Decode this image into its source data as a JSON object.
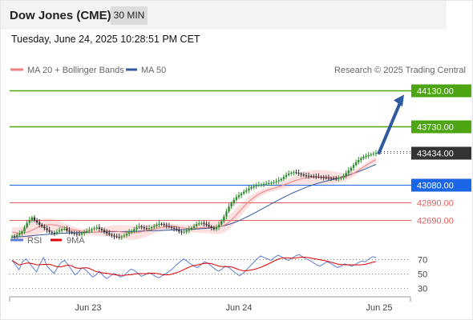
{
  "header": {
    "title": "Dow Jones (CME)",
    "timeframe": "30 MIN",
    "datetime": "Tuesday, June 24, 2025 10:28:51 PM CET"
  },
  "legend": {
    "ma20": "MA 20 + Bollinger Bands",
    "ma50": "MA 50",
    "credit": "Research © 2025 Trading Central",
    "rsi": "RSI",
    "rsi_ma": "9MA"
  },
  "colors": {
    "up_candle": "#2e8b2e",
    "down_candle": "#333333",
    "ma20": "#f08080",
    "ma50": "#2f5aa0",
    "bollinger_fill": "#fde0e0",
    "target": "#4ea514",
    "pivot": "#1a66e6",
    "support": "#e06060",
    "current": "#333333",
    "arrow": "#2f5aa0",
    "rsi_line": "#5b7fd6",
    "rsi_ma": "#e00000"
  },
  "chart_data": [
    {
      "type": "candlestick",
      "x_ticks": [
        "Jun 23",
        "Jun 24",
        "Jun 25"
      ],
      "ylim": [
        42550,
        44250
      ],
      "price_levels": [
        {
          "label": "44130.00",
          "value": 44130,
          "kind": "target"
        },
        {
          "label": "43730.00",
          "value": 43730,
          "kind": "target"
        },
        {
          "label": "43434.00",
          "value": 43434,
          "kind": "current"
        },
        {
          "label": "43080.00",
          "value": 43080,
          "kind": "pivot"
        },
        {
          "label": "42890.00",
          "value": 42890,
          "kind": "support"
        },
        {
          "label": "42690.00",
          "value": 42690,
          "kind": "support"
        }
      ],
      "projection": {
        "from": 43420,
        "to": 44080
      },
      "closes": [
        42510,
        42505,
        42525,
        42540,
        42565,
        42610,
        42660,
        42690,
        42720,
        42685,
        42665,
        42640,
        42620,
        42600,
        42580,
        42560,
        42550,
        42545,
        42560,
        42575,
        42590,
        42595,
        42575,
        42560,
        42550,
        42540,
        42535,
        42530,
        42545,
        42560,
        42570,
        42580,
        42590,
        42600,
        42610,
        42595,
        42580,
        42560,
        42545,
        42530,
        42520,
        42510,
        42505,
        42500,
        42510,
        42520,
        42540,
        42555,
        42570,
        42590,
        42610,
        42620,
        42610,
        42600,
        42590,
        42600,
        42610,
        42625,
        42640,
        42650,
        42645,
        42635,
        42625,
        42615,
        42605,
        42595,
        42580,
        42565,
        42555,
        42560,
        42575,
        42590,
        42605,
        42625,
        42645,
        42655,
        42660,
        42650,
        42635,
        42620,
        42605,
        42590,
        42610,
        42640,
        42680,
        42730,
        42785,
        42840,
        42880,
        42915,
        42945,
        42965,
        42985,
        43005,
        43020,
        43040,
        43055,
        43065,
        43075,
        43080,
        43085,
        43090,
        43095,
        43100,
        43105,
        43110,
        43120,
        43130,
        43145,
        43170,
        43190,
        43205,
        43215,
        43220,
        43215,
        43205,
        43195,
        43185,
        43180,
        43178,
        43176,
        43175,
        43172,
        43168,
        43165,
        43160,
        43158,
        43155,
        43152,
        43150,
        43148,
        43150,
        43160,
        43180,
        43210,
        43240,
        43270,
        43300,
        43330,
        43355,
        43375,
        43390,
        43400,
        43410,
        43420,
        43428,
        43434
      ],
      "ma20": [
        42560,
        42552,
        42548,
        42546,
        42548,
        42552,
        42558,
        42566,
        42578,
        42592,
        42606,
        42618,
        42628,
        42634,
        42638,
        42640,
        42640,
        42637,
        42632,
        42625,
        42618,
        42610,
        42602,
        42595,
        42588,
        42582,
        42577,
        42572,
        42568,
        42565,
        42562,
        42560,
        42559,
        42559,
        42560,
        42561,
        42563,
        42565,
        42567,
        42568,
        42568,
        42567,
        42565,
        42563,
        42560,
        42557,
        42554,
        42552,
        42551,
        42551,
        42553,
        42557,
        42562,
        42568,
        42574,
        42580,
        42586,
        42592,
        42598,
        42604,
        42609,
        42613,
        42616,
        42618,
        42619,
        42618,
        42615,
        42611,
        42607,
        42603,
        42600,
        42598,
        42597,
        42598,
        42600,
        42603,
        42606,
        42609,
        42611,
        42612,
        42612,
        42611,
        42612,
        42615,
        42622,
        42633,
        42648,
        42668,
        42692,
        42720,
        42750,
        42780,
        42810,
        42840,
        42868,
        42894,
        42918,
        42940,
        42960,
        42977,
        42992,
        43005,
        43016,
        43026,
        43035,
        43043,
        43051,
        43060,
        43069,
        43079,
        43090,
        43101,
        43112,
        43122,
        43131,
        43139,
        43146,
        43152,
        43157,
        43160,
        43163,
        43165,
        43166,
        43167,
        43167,
        43166,
        43165,
        43164,
        43162,
        43161,
        43160,
        43160,
        43161,
        43165,
        43172,
        43181,
        43193,
        43207,
        43223,
        43241,
        43259,
        43277,
        43295,
        43313,
        43330,
        43346,
        43360
      ],
      "ma50": [
        42500,
        42502,
        42504,
        42506,
        42508,
        42510,
        42512,
        42515,
        42518,
        42520,
        42523,
        42526,
        42528,
        42531,
        42533,
        42535,
        42537,
        42539,
        42541,
        42543,
        42545,
        42546,
        42547,
        42548,
        42549,
        42550,
        42551,
        42552,
        42553,
        42554,
        42555,
        42556,
        42557,
        42558,
        42559,
        42560,
        42560,
        42561,
        42561,
        42562,
        42562,
        42562,
        42563,
        42563,
        42563,
        42564,
        42564,
        42565,
        42565,
        42566,
        42567,
        42568,
        42569,
        42570,
        42571,
        42572,
        42573,
        42574,
        42575,
        42576,
        42577,
        42578,
        42579,
        42580,
        42581,
        42582,
        42583,
        42584,
        42585,
        42586,
        42587,
        42588,
        42589,
        42590,
        42592,
        42594,
        42596,
        42598,
        42600,
        42603,
        42606,
        42609,
        42613,
        42617,
        42622,
        42628,
        42635,
        42643,
        42652,
        42662,
        42673,
        42685,
        42697,
        42710,
        42723,
        42737,
        42751,
        42765,
        42780,
        42795,
        42810,
        42825,
        42840,
        42855,
        42870,
        42885,
        42900,
        42914,
        42928,
        42942,
        42956,
        42970,
        42983,
        42996,
        43008,
        43020,
        43032,
        43043,
        43054,
        43064,
        43074,
        43083,
        43092,
        43100,
        43108,
        43115,
        43122,
        43129,
        43136,
        43143,
        43150,
        43157,
        43165,
        43173,
        43181,
        43190,
        43199,
        43208,
        43218,
        43228,
        43238,
        43249,
        43260,
        43272,
        43284,
        43296,
        43308
      ]
    },
    {
      "type": "line",
      "name": "RSI",
      "x_ticks": [
        "Jun 23",
        "Jun 24",
        "Jun 25"
      ],
      "y_ticks": [
        70,
        50,
        30
      ],
      "ylim": [
        20,
        85
      ],
      "rsi": [
        68,
        62,
        55,
        66,
        70,
        64,
        58,
        52,
        63,
        72,
        60,
        55,
        50,
        58,
        65,
        68,
        62,
        55,
        48,
        52,
        58,
        55,
        50,
        45,
        48,
        53,
        47,
        43,
        46,
        50,
        48,
        45,
        47,
        52,
        56,
        54,
        50,
        46,
        48,
        51,
        49,
        46,
        44,
        47,
        50,
        53,
        57,
        62,
        66,
        70,
        67,
        63,
        60,
        58,
        62,
        66,
        64,
        60,
        56,
        53,
        56,
        60,
        58,
        54,
        50,
        47,
        50,
        55,
        60,
        65,
        70,
        74,
        72,
        70,
        68,
        72,
        75,
        73,
        70,
        68,
        71,
        74,
        76,
        73,
        70,
        68,
        65,
        62,
        60,
        63,
        66,
        64,
        61,
        58,
        60,
        63,
        62,
        60,
        62,
        65,
        67,
        66,
        70,
        73,
        72
      ]
    }
  ]
}
